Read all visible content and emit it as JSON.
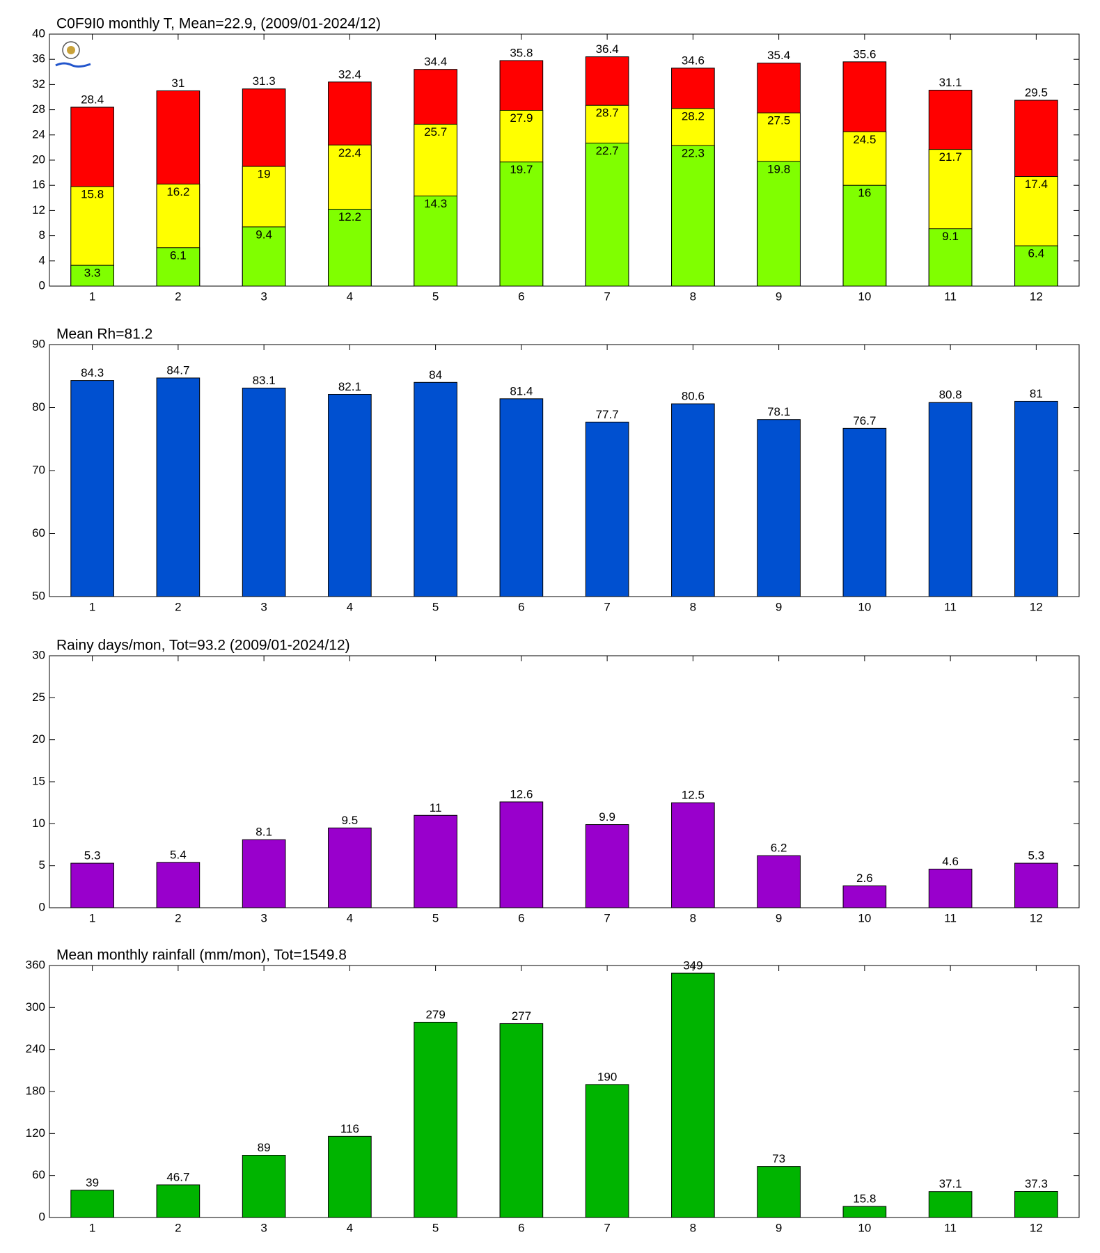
{
  "chart_data": [
    {
      "type": "bar",
      "title": "C0F9I0 monthly T, Mean=22.9, (2009/01-2024/12)",
      "categories": [
        "1",
        "2",
        "3",
        "4",
        "5",
        "6",
        "7",
        "8",
        "9",
        "10",
        "11",
        "12"
      ],
      "series": [
        {
          "color": "#ff0000",
          "values": [
            28.4,
            31,
            31.3,
            32.4,
            34.4,
            35.8,
            36.4,
            34.6,
            35.4,
            35.6,
            31.1,
            29.5
          ]
        },
        {
          "color": "#ffff00",
          "values": [
            15.8,
            16.2,
            19,
            22.4,
            25.7,
            27.9,
            28.7,
            28.2,
            27.5,
            24.5,
            21.7,
            17.4
          ]
        },
        {
          "color": "#80ff00",
          "values": [
            3.3,
            6.1,
            9.4,
            12.2,
            14.3,
            19.7,
            22.7,
            22.3,
            19.8,
            16,
            9.1,
            6.4
          ]
        }
      ],
      "ylim": [
        0,
        40
      ],
      "yticks": [
        0,
        4,
        8,
        12,
        16,
        20,
        24,
        28,
        32,
        36,
        40
      ]
    },
    {
      "type": "bar",
      "title": "Mean Rh=81.2",
      "categories": [
        "1",
        "2",
        "3",
        "4",
        "5",
        "6",
        "7",
        "8",
        "9",
        "10",
        "11",
        "12"
      ],
      "series": [
        {
          "color": "#0050d0",
          "values": [
            84.3,
            84.7,
            83.1,
            82.1,
            84,
            81.4,
            77.7,
            80.6,
            78.1,
            76.7,
            80.8,
            81
          ]
        }
      ],
      "ylim": [
        50,
        90
      ],
      "yticks": [
        50,
        60,
        70,
        80,
        90
      ]
    },
    {
      "type": "bar",
      "title": "Rainy days/mon, Tot=93.2 (2009/01-2024/12)",
      "categories": [
        "1",
        "2",
        "3",
        "4",
        "5",
        "6",
        "7",
        "8",
        "9",
        "10",
        "11",
        "12"
      ],
      "series": [
        {
          "color": "#9900cc",
          "values": [
            5.3,
            5.4,
            8.1,
            9.5,
            11,
            12.6,
            9.9,
            12.5,
            6.2,
            2.6,
            4.6,
            5.3
          ]
        }
      ],
      "ylim": [
        0,
        30
      ],
      "yticks": [
        0,
        5,
        10,
        15,
        20,
        25,
        30
      ]
    },
    {
      "type": "bar",
      "title": "Mean monthly rainfall (mm/mon), Tot=1549.8",
      "categories": [
        "1",
        "2",
        "3",
        "4",
        "5",
        "6",
        "7",
        "8",
        "9",
        "10",
        "11",
        "12"
      ],
      "series": [
        {
          "color": "#00b400",
          "values": [
            39,
            46.7,
            89,
            116,
            279,
            277,
            190,
            349,
            73,
            15.8,
            37.1,
            37.3
          ]
        }
      ],
      "ylim": [
        0,
        360
      ],
      "yticks": [
        0,
        60,
        120,
        180,
        240,
        300,
        360
      ]
    }
  ]
}
